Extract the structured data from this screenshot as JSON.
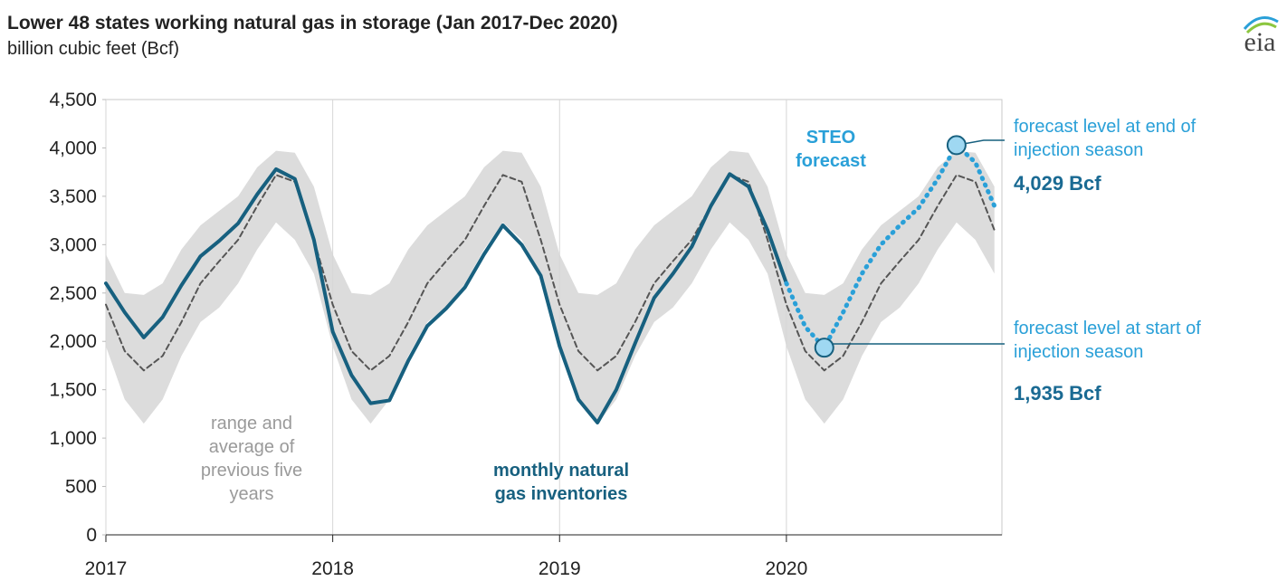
{
  "chart_data": {
    "type": "line",
    "title": "Lower 48 states working natural gas in storage (Jan 2017-Dec 2020)",
    "subtitle": "billion cubic feet (Bcf)",
    "logo": "eia",
    "x": [
      2017,
      2017.083,
      2017.167,
      2017.25,
      2017.333,
      2017.417,
      2017.5,
      2017.583,
      2017.667,
      2017.75,
      2017.833,
      2017.917,
      2018,
      2018.083,
      2018.167,
      2018.25,
      2018.333,
      2018.417,
      2018.5,
      2018.583,
      2018.667,
      2018.75,
      2018.833,
      2018.917,
      2019,
      2019.083,
      2019.167,
      2019.25,
      2019.333,
      2019.417,
      2019.5,
      2019.583,
      2019.667,
      2019.75,
      2019.833,
      2019.917,
      2020,
      2020.083,
      2020.167,
      2020.25,
      2020.333,
      2020.417,
      2020.5,
      2020.583,
      2020.667,
      2020.75,
      2020.833,
      2020.917
    ],
    "xlim": [
      2017,
      2020.95
    ],
    "xticks": [
      2017,
      2018,
      2019,
      2020
    ],
    "ylim": [
      0,
      4500
    ],
    "yticks": [
      0,
      500,
      {
        "value": 1000,
        "label": "1,000"
      },
      {
        "value": 1500,
        "label": "1,500"
      },
      {
        "value": 2000,
        "label": "2,000"
      },
      {
        "value": 2500,
        "label": "2,500"
      },
      {
        "value": 3000,
        "label": "3,000"
      },
      {
        "value": 3500,
        "label": "3,500"
      },
      {
        "value": 4000,
        "label": "4,000"
      },
      {
        "value": 4500,
        "label": "4,500"
      }
    ],
    "grid": "x",
    "range": {
      "color": "#dcdcdc",
      "high": [
        2900,
        2500,
        2480,
        2600,
        2950,
        3200,
        3350,
        3500,
        3800,
        3970,
        3950,
        3600,
        2900,
        2500,
        2480,
        2600,
        2950,
        3200,
        3350,
        3500,
        3800,
        3970,
        3950,
        3600,
        2900,
        2500,
        2480,
        2600,
        2950,
        3200,
        3350,
        3500,
        3800,
        3970,
        3950,
        3600,
        2900,
        2500,
        2480,
        2600,
        2950,
        3200,
        3350,
        3500,
        3800,
        3970,
        3950,
        3600
      ],
      "low": [
        1950,
        1400,
        1150,
        1400,
        1850,
        2200,
        2350,
        2600,
        2950,
        3230,
        3050,
        2700,
        1950,
        1400,
        1150,
        1400,
        1850,
        2200,
        2350,
        2600,
        2950,
        3230,
        3050,
        2700,
        1950,
        1400,
        1150,
        1400,
        1850,
        2200,
        2350,
        2600,
        2950,
        3230,
        3050,
        2700,
        1950,
        1400,
        1150,
        1400,
        1850,
        2200,
        2350,
        2600,
        2950,
        3230,
        3050,
        2700
      ]
    },
    "series": [
      {
        "color": "#555555",
        "style": "dashed",
        "values": [
          2380,
          1900,
          1700,
          1850,
          2200,
          2600,
          2830,
          3050,
          3400,
          3720,
          3650,
          3050,
          2380,
          1900,
          1700,
          1850,
          2200,
          2600,
          2830,
          3050,
          3400,
          3720,
          3650,
          3050,
          2380,
          1900,
          1700,
          1850,
          2200,
          2600,
          2830,
          3050,
          3400,
          3720,
          3650,
          3050,
          2380,
          1900,
          1700,
          1850,
          2200,
          2600,
          2830,
          3050,
          3400,
          3720,
          3650,
          3150
        ]
      },
      {
        "color": "#17607f",
        "style": "solid",
        "values": [
          2600,
          2300,
          2040,
          2250,
          2580,
          2880,
          3040,
          3220,
          3520,
          3780,
          3680,
          3050,
          2100,
          1650,
          1360,
          1390,
          1800,
          2160,
          2340,
          2560,
          2900,
          3200,
          3000,
          2680,
          1950,
          1400,
          1160,
          1500,
          1980,
          2450,
          2700,
          2980,
          3400,
          3730,
          3600,
          3150,
          2600,
          null,
          null,
          null,
          null,
          null,
          null,
          null,
          null,
          null,
          null,
          null
        ]
      },
      {
        "color": "#2aa0d8",
        "style": "dotted",
        "values": [
          null,
          null,
          null,
          null,
          null,
          null,
          null,
          null,
          null,
          null,
          null,
          null,
          null,
          null,
          null,
          null,
          null,
          null,
          null,
          null,
          null,
          null,
          null,
          null,
          null,
          null,
          null,
          null,
          null,
          null,
          null,
          null,
          null,
          null,
          null,
          null,
          2600,
          2150,
          1935,
          2300,
          2700,
          3000,
          3200,
          3380,
          3680,
          4029,
          3850,
          3400
        ]
      }
    ],
    "annotations": [
      {
        "lines": [
          "STEO",
          "forecast"
        ],
        "color": "#2aa0d8",
        "bold": true
      },
      {
        "lines": [
          "forecast level at end of",
          "injection season"
        ],
        "color": "#2aa0d8",
        "bold": false
      },
      {
        "lines": [
          "4,029 Bcf"
        ],
        "color": "#1a6a93",
        "bold": true
      },
      {
        "lines": [
          "forecast level at start of",
          "injection season"
        ],
        "color": "#2aa0d8",
        "bold": false
      },
      {
        "lines": [
          "1,935 Bcf"
        ],
        "color": "#1a6a93",
        "bold": true
      },
      {
        "lines": [
          "monthly natural",
          "gas inventories"
        ],
        "color": "#17607f",
        "bold": true
      },
      {
        "lines": [
          "range and",
          "average of",
          "previous five",
          "years"
        ],
        "color": "#9a9a9a",
        "bold": false
      }
    ]
  }
}
